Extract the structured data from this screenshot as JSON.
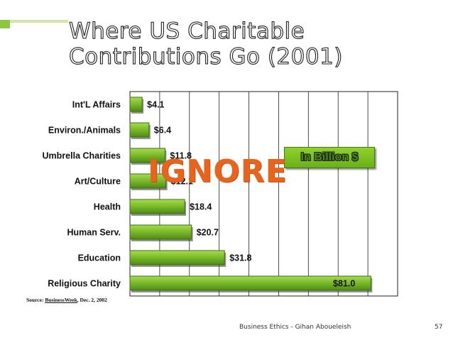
{
  "slide": {
    "title_line1": "Where US Charitable",
    "title_line2": "Contributions Go (2001)",
    "footer": "Business Ethics - Gihan Aboueleish",
    "page_number": "57",
    "overlay_text": "IGNORE",
    "source_prefix": "Source:",
    "source_publication": "BusinessWeek",
    "source_date": ", Dec. 2, 2002",
    "accent_color": "#8dc63f",
    "bar_color": "#79b82a",
    "overlay_color": "#e8641b"
  },
  "chart_data": {
    "type": "bar",
    "orientation": "horizontal",
    "title": "",
    "xlabel": "",
    "ylabel": "",
    "unit_label": "In Billion $",
    "xlim": [
      0,
      90
    ],
    "grid": true,
    "categories": [
      "Int'L Affairs",
      "Environ./Animals",
      "Umbrella Charities",
      "Art/Culture",
      "Health",
      "Human Serv.",
      "Education",
      "Religious Charity"
    ],
    "values": [
      4.1,
      6.4,
      11.8,
      12.1,
      18.4,
      20.7,
      31.8,
      81.0
    ],
    "value_labels": [
      "$4.1",
      "$6.4",
      "$11.8",
      "$12.1",
      "$18.4",
      "$20.7",
      "$31.8",
      "$81.0"
    ]
  }
}
